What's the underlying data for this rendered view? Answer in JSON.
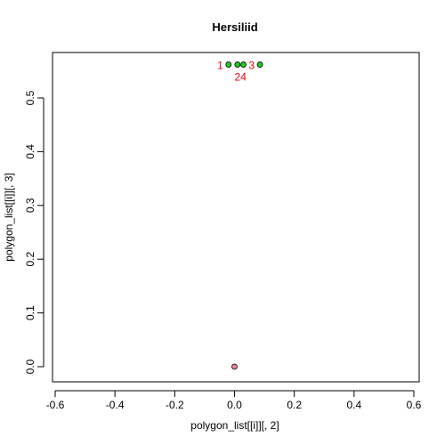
{
  "chart_data": {
    "type": "scatter",
    "title": "Hersiliid",
    "xlabel": "polygon_list[[i]][, 2]",
    "ylabel": "polygon_list[[i]][, 3]",
    "xlim": [
      -0.6,
      0.6
    ],
    "ylim": [
      0.0,
      0.55
    ],
    "x_ticks": [
      "-0.6",
      "-0.4",
      "-0.2",
      "0.0",
      "0.2",
      "0.4",
      "0.6"
    ],
    "y_ticks": [
      "0.0",
      "0.1",
      "0.2",
      "0.3",
      "0.4",
      "0.5"
    ],
    "grid": false,
    "points": [
      {
        "x": -0.02,
        "y": 0.562,
        "label": "1",
        "fill": "#22cc22",
        "label_side": "left"
      },
      {
        "x": 0.01,
        "y": 0.562,
        "label": "2",
        "fill": "#22cc22",
        "label_side": "below"
      },
      {
        "x": 0.03,
        "y": 0.562,
        "label": "4",
        "fill": "#22cc22",
        "label_side": "below"
      },
      {
        "x": 0.085,
        "y": 0.562,
        "label": "3",
        "fill": "#22cc22",
        "label_side": "left"
      },
      {
        "x": 0.0,
        "y": 0.0,
        "label": "",
        "fill": "#f08090",
        "label_side": "none"
      }
    ]
  }
}
